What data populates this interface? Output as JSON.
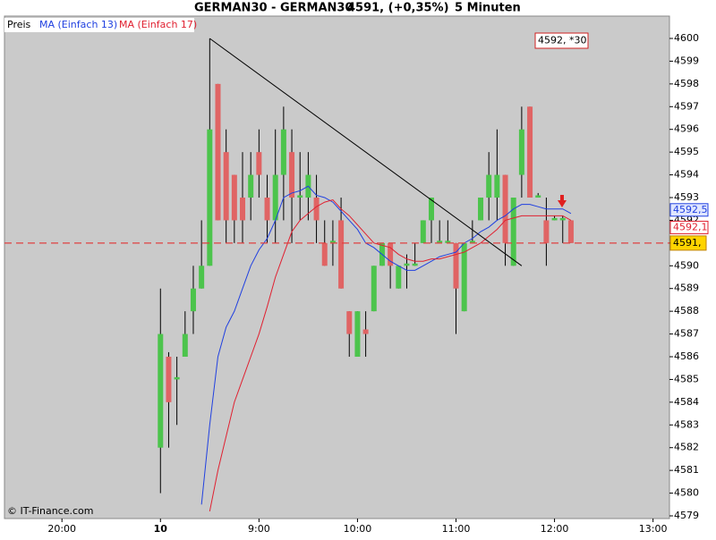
{
  "chart_data": {
    "type": "candlestick",
    "title": "GERMAN30 - GERMAN30",
    "price_text": "4591, (+0,35%)",
    "interval": "5 Minuten",
    "legend": [
      "Preis",
      "MA (Einfach 13)",
      "MA (Einfach 17)"
    ],
    "x": [
      "08:00",
      "08:05",
      "08:10",
      "08:15",
      "08:20",
      "08:25",
      "08:30",
      "08:35",
      "08:40",
      "08:45",
      "08:50",
      "08:55",
      "09:00",
      "09:05",
      "09:10",
      "09:15",
      "09:20",
      "09:25",
      "09:30",
      "09:35",
      "09:40",
      "09:45",
      "09:50",
      "09:55",
      "10:00",
      "10:05",
      "10:10",
      "10:15",
      "10:20",
      "10:25",
      "10:30",
      "10:35",
      "10:40",
      "10:45",
      "10:50",
      "10:55",
      "11:00",
      "11:05",
      "11:10",
      "11:15",
      "11:20",
      "11:25",
      "11:30",
      "11:35",
      "11:40",
      "11:45",
      "11:50",
      "11:55",
      "12:00",
      "12:05",
      "12:10"
    ],
    "open": [
      4582,
      4586,
      4585,
      4586,
      4588,
      4589,
      4590,
      4598,
      4595,
      4594,
      4593,
      4593,
      4595,
      4593,
      4592,
      4594,
      4595,
      4593,
      4593,
      4593,
      4591,
      4591,
      4592,
      4588,
      4586,
      4587.2,
      4588,
      4590,
      4591,
      4589,
      4590,
      4590,
      4591,
      4592,
      4591,
      4591,
      4591,
      4588,
      4591,
      4592,
      4593,
      4593,
      4594,
      4590,
      4594,
      4597,
      4593,
      4592,
      4592,
      4592,
      4592
    ],
    "close": [
      4587,
      4584,
      4585.1,
      4587,
      4589,
      4590,
      4596,
      4592,
      4592,
      4592,
      4592,
      4594,
      4594,
      4592,
      4594,
      4596,
      4593,
      4593.1,
      4594,
      4592,
      4590,
      4591.1,
      4589,
      4587,
      4588,
      4587,
      4590,
      4591,
      4590,
      4590,
      4590.1,
      4590.1,
      4592,
      4593,
      4591.1,
      4591.1,
      4589,
      4591,
      4591.1,
      4593,
      4594,
      4594,
      4591,
      4593,
      4596,
      4593,
      4593.1,
      4591,
      4592.1,
      4592.1,
      4591
    ],
    "high": [
      4589,
      4586.2,
      4586,
      4588,
      4590,
      4592,
      4600,
      4598,
      4596,
      4594,
      4595,
      4595,
      4596,
      4594,
      4596,
      4597,
      4596,
      4595,
      4595,
      4594,
      4592,
      4592,
      4593,
      4588,
      4588,
      4588,
      4590,
      4591,
      4591,
      4590,
      4590.5,
      4591,
      4592,
      4593,
      4592,
      4592,
      4591,
      4591,
      4592,
      4593,
      4595,
      4596,
      4594,
      4593,
      4597,
      4597,
      4593.2,
      4593,
      4592.2,
      4592.2,
      4592
    ],
    "low": [
      4580,
      4582,
      4583,
      4586,
      4587,
      4589,
      4590,
      4592,
      4591,
      4591,
      4591,
      4592,
      4593,
      4591,
      4591,
      4592,
      4591,
      4592,
      4592,
      4591,
      4590,
      4590,
      4589,
      4586,
      4586,
      4586,
      4588,
      4590,
      4589,
      4589,
      4589,
      4590,
      4591,
      4591,
      4591,
      4591,
      4587,
      4588,
      4591,
      4592,
      4592,
      4592,
      4590,
      4590,
      4593,
      4593,
      4593,
      4590,
      4592,
      4591,
      4591
    ],
    "up_color": "#4cc44c",
    "down_color": "#e06464",
    "series": [
      {
        "name": "MA (Einfach 13)",
        "color": "#2040e0",
        "values": [
          null,
          null,
          null,
          null,
          null,
          4579.5,
          4583,
          4586,
          4587.3,
          4588,
          4589,
          4590,
          4590.7,
          4591.2,
          4592,
          4593,
          4593.2,
          4593.3,
          4593.5,
          4593.1,
          4593,
          4592.8,
          4592.4,
          4592,
          4591.6,
          4591,
          4590.8,
          4590.5,
          4590.2,
          4590,
          4589.8,
          4589.8,
          4590,
          4590.2,
          4590.4,
          4590.5,
          4590.6,
          4591,
          4591.2,
          4591.5,
          4591.7,
          4592,
          4592.2,
          4592.5,
          4592.7,
          4592.7,
          4592.6,
          4592.5,
          4592.5,
          4592.5,
          4592.3
        ]
      },
      {
        "name": "MA (Einfach 17)",
        "color": "#e02030",
        "values": [
          null,
          null,
          null,
          null,
          null,
          null,
          4579.2,
          4581,
          4582.5,
          4584,
          4585,
          4586,
          4587,
          4588.2,
          4589.5,
          4590.5,
          4591.5,
          4592,
          4592.3,
          4592.6,
          4592.8,
          4592.9,
          4592.5,
          4592.2,
          4591.8,
          4591.4,
          4591,
          4590.9,
          4590.8,
          4590.5,
          4590.3,
          4590.2,
          4590.2,
          4590.3,
          4590.3,
          4590.4,
          4590.5,
          4590.6,
          4590.8,
          4591,
          4591.3,
          4591.6,
          4592,
          4592.1,
          4592.2,
          4592.2,
          4592.2,
          4592.2,
          4592.2,
          4592.2,
          4592
        ]
      }
    ],
    "ma_labels": [
      "4592,5",
      "4592,1"
    ],
    "trendline": {
      "x": [
        "08:30",
        "11:40"
      ],
      "y": [
        4600,
        4590
      ]
    },
    "current_price": 4591,
    "current_label": "4591,",
    "cursor_label": "4592, *30",
    "ylim": [
      4579,
      4601
    ],
    "yticks": [
      4579,
      4580,
      4581,
      4582,
      4583,
      4584,
      4585,
      4586,
      4587,
      4588,
      4589,
      4590,
      4591,
      4592,
      4593,
      4594,
      4595,
      4596,
      4597,
      4598,
      4599,
      4600
    ],
    "xlim": [
      "19:25",
      "13:10"
    ],
    "xticks": [
      {
        "value": "20:00",
        "label": "20:00"
      },
      {
        "value": "08:00",
        "label": "10"
      },
      {
        "value": "09:00",
        "label": "9:00"
      },
      {
        "value": "10:00",
        "label": "10:00"
      },
      {
        "value": "11:00",
        "label": "11:00"
      },
      {
        "value": "12:00",
        "label": "12:00"
      },
      {
        "value": "13:00",
        "label": "13:00"
      }
    ],
    "copyright": "© IT-Finance.com"
  }
}
